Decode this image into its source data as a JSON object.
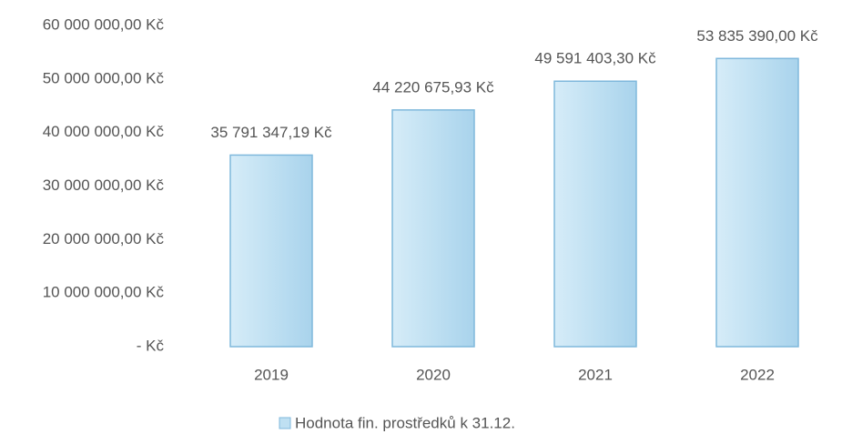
{
  "chart_data": {
    "type": "bar",
    "categories": [
      "2019",
      "2020",
      "2021",
      "2022"
    ],
    "series": [
      {
        "name": "Hodnota fin. prostředků k 31.12.",
        "color": "#bfe0f2",
        "values": [
          35791347.19,
          44220675.93,
          49591403.3,
          53835390.0
        ],
        "value_labels": [
          "35 791 347,19 Kč",
          "44 220 675,93 Kč",
          "49 591 403,30 Kč",
          "53 835 390,00 Kč"
        ]
      }
    ],
    "ylim": [
      0,
      60000000
    ],
    "yticks": [
      {
        "value": 0,
        "label": "-   Kč"
      },
      {
        "value": 10000000,
        "label": "10 000 000,00 Kč"
      },
      {
        "value": 20000000,
        "label": "20 000 000,00 Kč"
      },
      {
        "value": 30000000,
        "label": "30 000 000,00 Kč"
      },
      {
        "value": 40000000,
        "label": "40 000 000,00 Kč"
      },
      {
        "value": 50000000,
        "label": "50 000 000,00 Kč"
      },
      {
        "value": 60000000,
        "label": "60 000 000,00 Kč"
      }
    ],
    "grid": false,
    "legend": "bottom"
  }
}
